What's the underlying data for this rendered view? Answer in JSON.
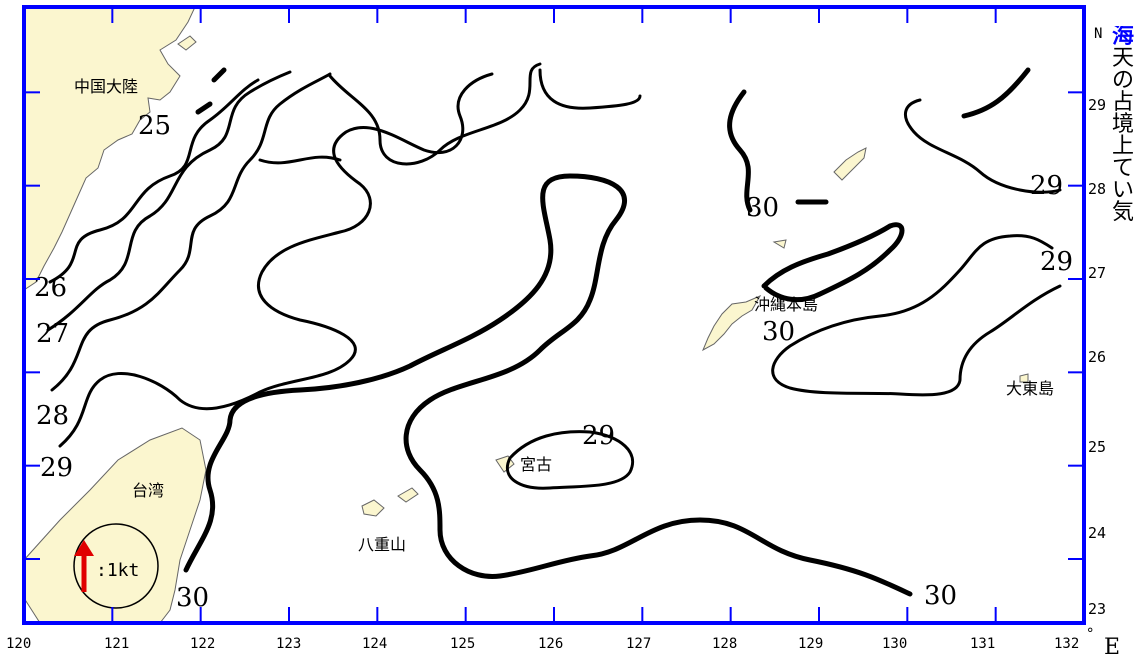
{
  "map": {
    "border_color": "#0000ff",
    "land_color": "#fbf6cf",
    "sea_color": "#ffffff",
    "current_arrow_color": "#e00000",
    "regions": {
      "mainland": "中国大陸",
      "taiwan": "台湾",
      "okinawa": "沖縄本島",
      "miyako": "宮古",
      "yaeyama": "八重山",
      "daito": "大東島"
    },
    "scale": {
      "label": ":1kt",
      "icon": "arrow-up-icon"
    },
    "lon_ticks": [
      "120",
      "121",
      "122",
      "123",
      "124",
      "125",
      "126",
      "127",
      "128",
      "129",
      "130",
      "131",
      "132"
    ],
    "lat_ticks": [
      "29",
      "28",
      "27",
      "26",
      "25",
      "24",
      "23"
    ],
    "axis_n": "N",
    "axis_e": "E",
    "degree": "°",
    "isotherm_labels": [
      "25",
      "26",
      "27",
      "28",
      "29",
      "29",
      "29",
      "29",
      "30",
      "30",
      "30",
      "30"
    ]
  },
  "side_text": {
    "title_fragment": "海",
    "lines": [
      "天",
      "の",
      "占",
      "境",
      "上",
      "て",
      "い",
      "気"
    ]
  }
}
